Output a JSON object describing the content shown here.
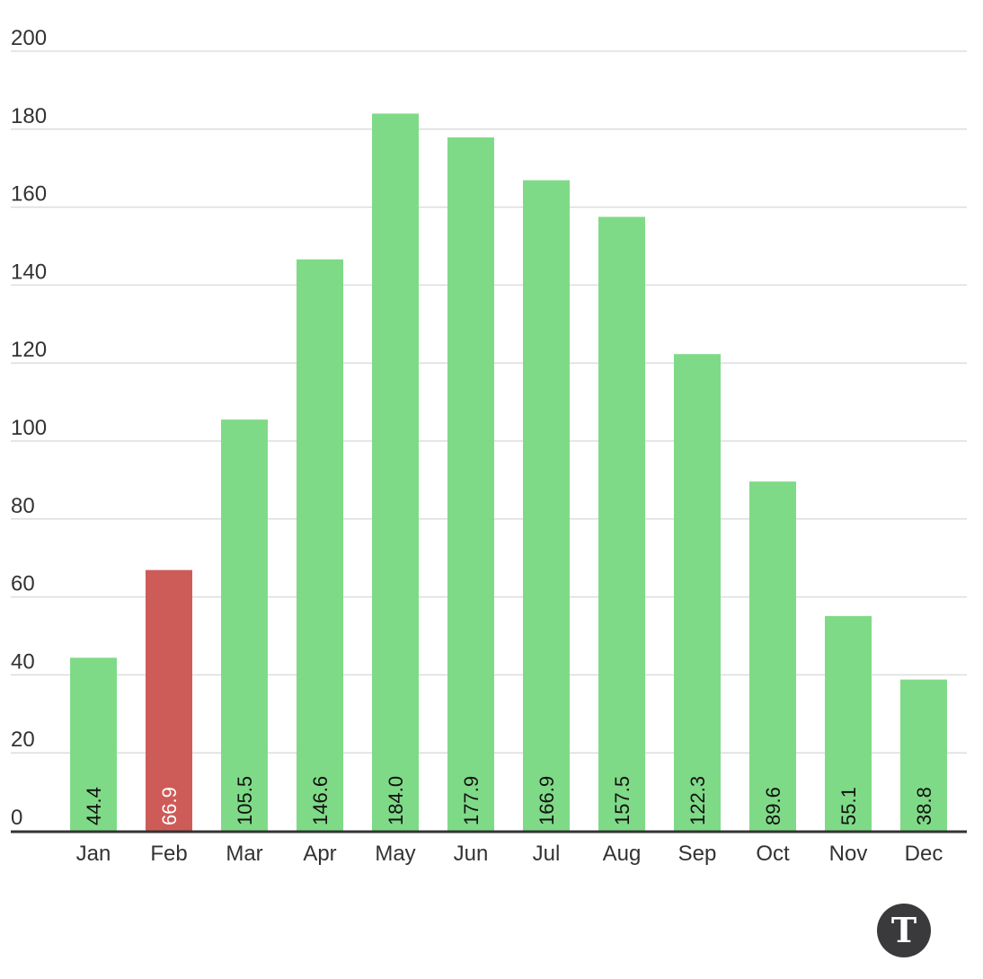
{
  "chart_data": {
    "type": "bar",
    "categories": [
      "Jan",
      "Feb",
      "Mar",
      "Apr",
      "May",
      "Jun",
      "Jul",
      "Aug",
      "Sep",
      "Oct",
      "Nov",
      "Dec"
    ],
    "values": [
      44.4,
      66.9,
      105.5,
      146.6,
      184.0,
      177.9,
      166.9,
      157.5,
      122.3,
      89.6,
      55.1,
      38.8
    ],
    "value_labels": [
      "44.4",
      "66.9",
      "105.5",
      "146.6",
      "184.0",
      "177.9",
      "166.9",
      "157.5",
      "122.3",
      "89.6",
      "55.1",
      "38.8"
    ],
    "highlight_category": "Feb",
    "ylim": [
      0,
      200
    ],
    "yticks": [
      0,
      20,
      40,
      60,
      80,
      100,
      120,
      140,
      160,
      180,
      200
    ],
    "ytick_labels": [
      "0",
      "20",
      "40",
      "60",
      "80",
      "100",
      "120",
      "140",
      "160",
      "180",
      "200"
    ],
    "grid": true,
    "colors": {
      "bar": "#7fda87",
      "highlight": "#cd5c59",
      "grid": "#dddddd",
      "baseline": "#333333",
      "label_on_bar": "#111111",
      "label_on_highlight": "#ffffff"
    }
  },
  "logo": {
    "letter": "T",
    "icon": "publisher-logo-icon"
  }
}
